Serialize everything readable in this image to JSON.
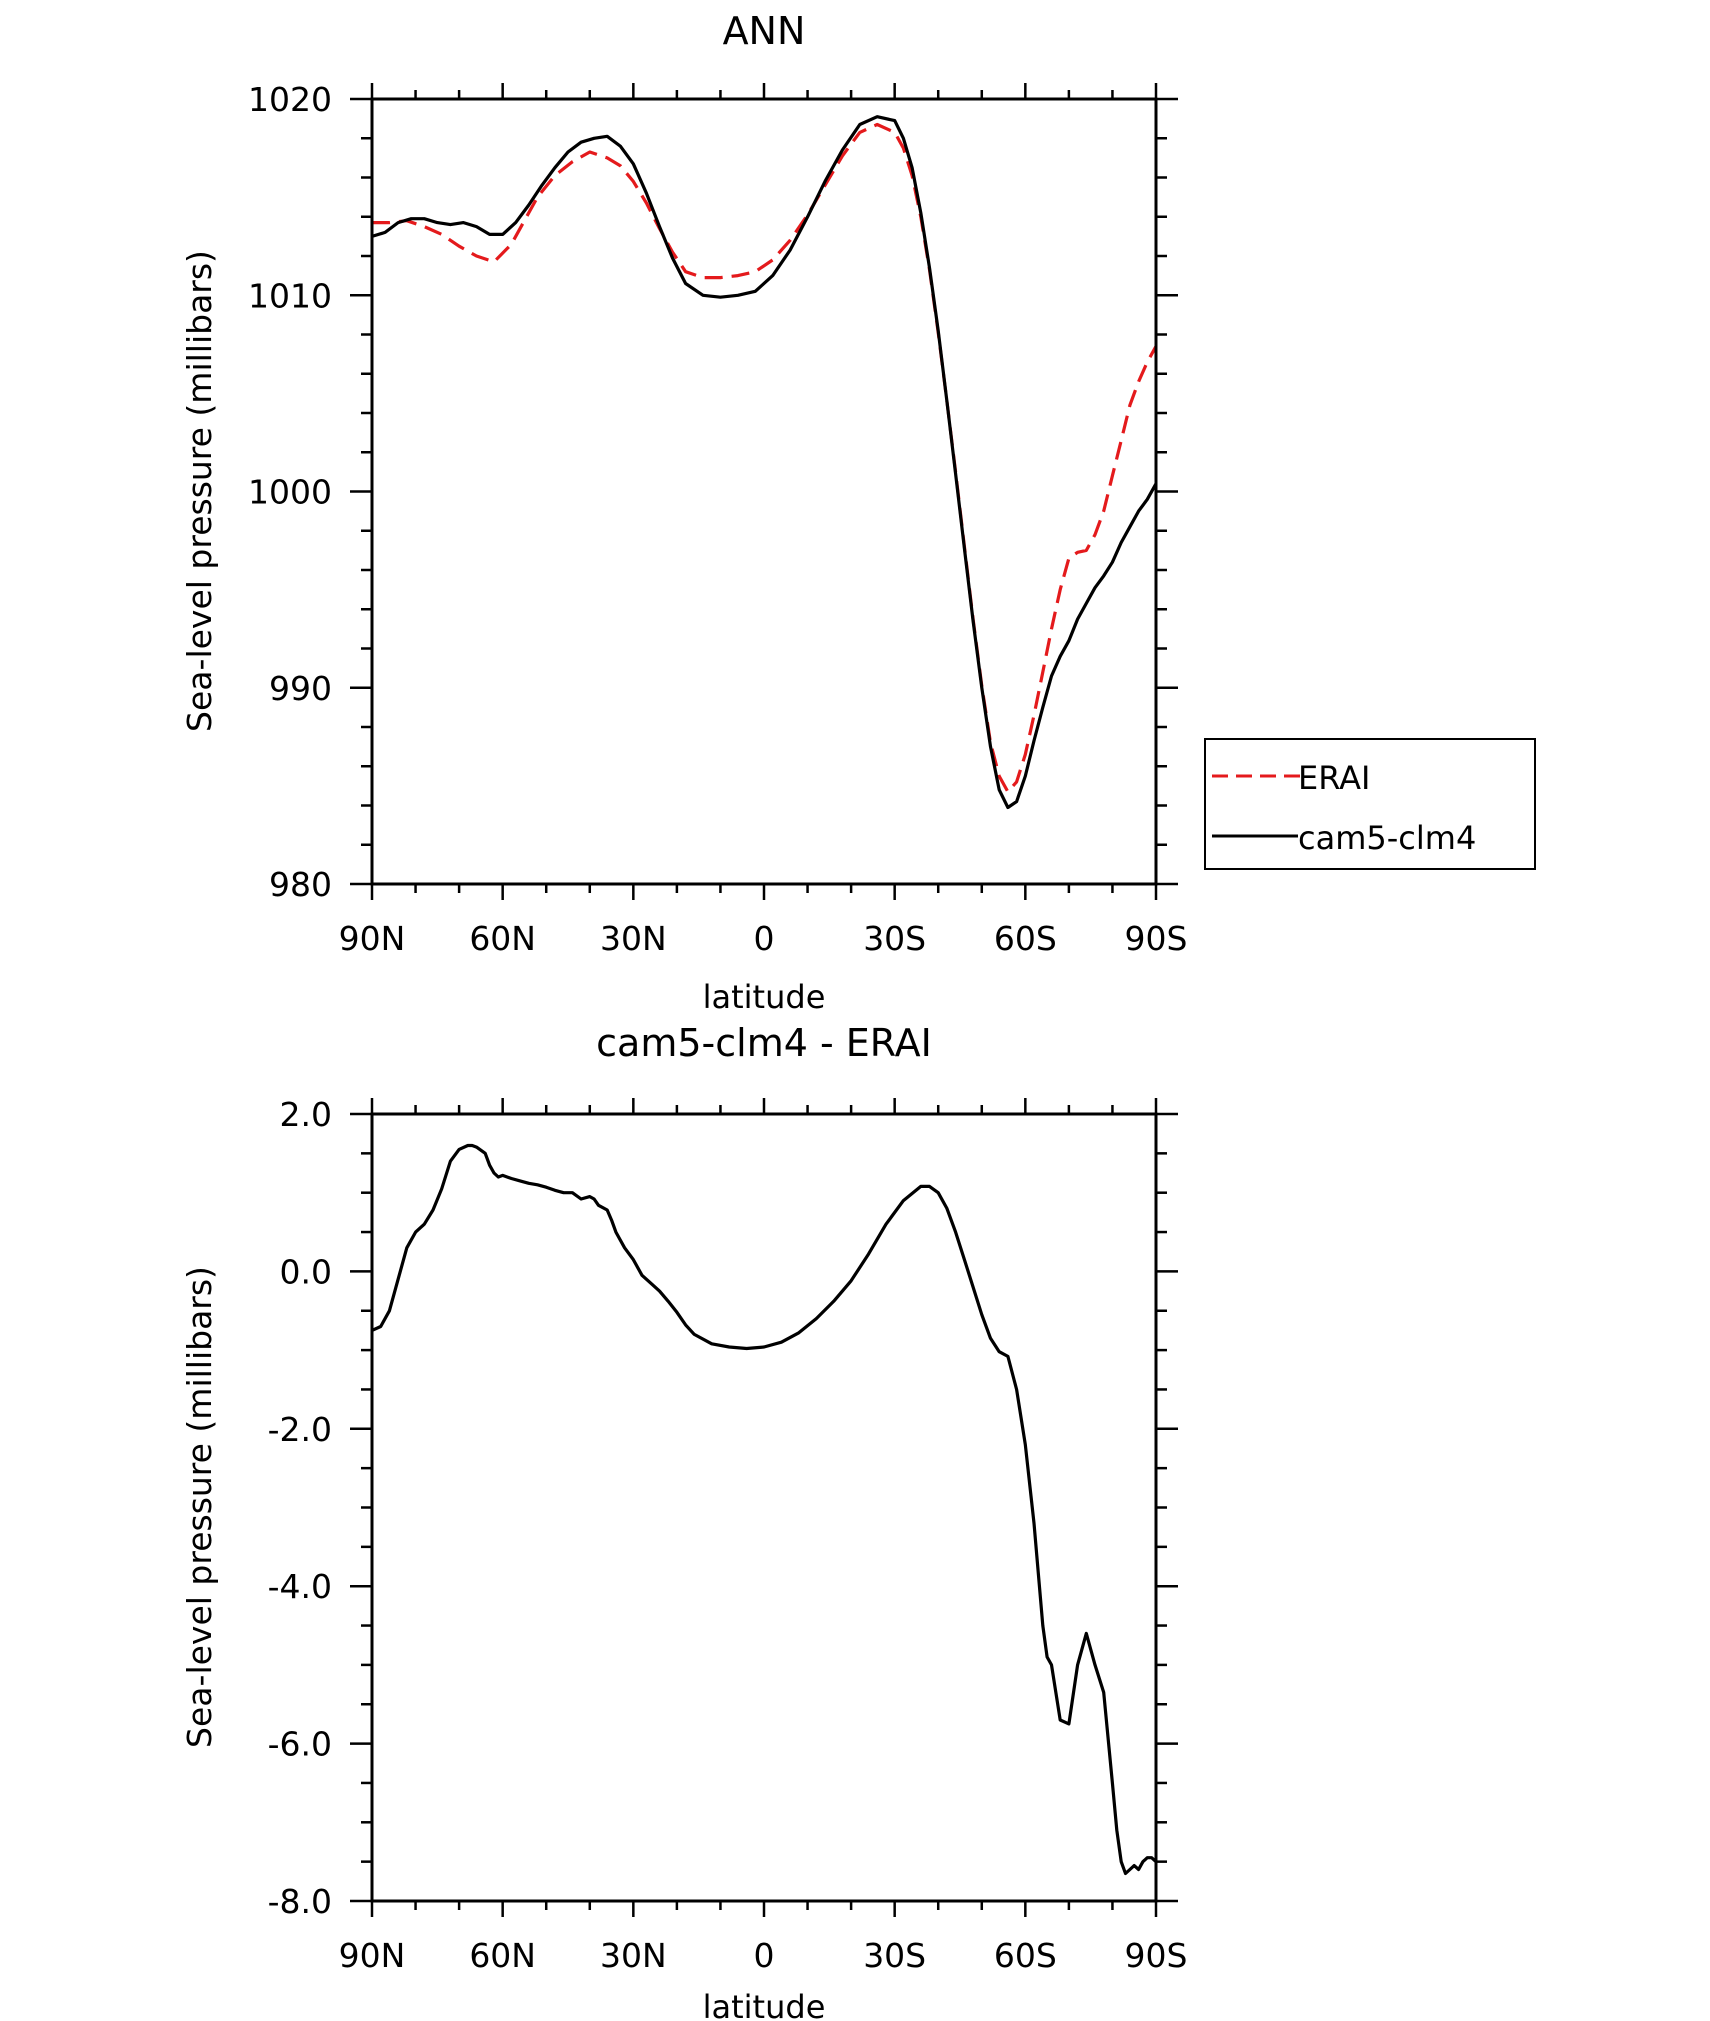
{
  "chart_data": [
    {
      "type": "line",
      "title": "ANN",
      "xlabel": "latitude",
      "ylabel": "Sea-level pressure (millibars)",
      "xlim": [
        90,
        -90
      ],
      "ylim": [
        980,
        1020
      ],
      "x_ticks": [
        {
          "value": 90,
          "label": "90N"
        },
        {
          "value": 60,
          "label": "60N"
        },
        {
          "value": 30,
          "label": "30N"
        },
        {
          "value": 0,
          "label": "0"
        },
        {
          "value": -30,
          "label": "30S"
        },
        {
          "value": -60,
          "label": "60S"
        },
        {
          "value": -90,
          "label": "90S"
        }
      ],
      "y_ticks": [
        {
          "value": 1020,
          "label": "1020"
        },
        {
          "value": 1010,
          "label": "1010"
        },
        {
          "value": 1000,
          "label": "1000"
        },
        {
          "value": 990,
          "label": "990"
        },
        {
          "value": 980,
          "label": "980"
        }
      ],
      "grid": false,
      "legend": {
        "placement": "right",
        "entries": [
          {
            "name": "ERAI",
            "color": "#e41a1c",
            "dash": "dashed"
          },
          {
            "name": "cam5-clm4",
            "color": "#000000",
            "dash": "solid"
          }
        ]
      },
      "series": [
        {
          "name": "ERAI",
          "color": "#e41a1c",
          "dash": "dashed",
          "x": [
            90,
            86,
            82,
            78,
            74,
            70,
            66,
            62,
            58,
            55,
            52,
            48,
            44,
            40,
            36,
            33,
            30,
            27,
            24,
            21,
            18,
            14,
            10,
            6,
            2,
            -2,
            -6,
            -10,
            -14,
            -18,
            -22,
            -26,
            -30,
            -32,
            -34,
            -36,
            -38,
            -40,
            -42,
            -44,
            -46,
            -48,
            -50,
            -52,
            -54,
            -56,
            -58,
            -60,
            -62,
            -64,
            -66,
            -68,
            -70,
            -72,
            -74,
            -76,
            -78,
            -80,
            -82,
            -84,
            -86,
            -88,
            -90
          ],
          "y": [
            1013.7,
            1013.7,
            1013.8,
            1013.5,
            1013.1,
            1012.5,
            1012.0,
            1011.7,
            1012.6,
            1013.8,
            1015.0,
            1016.1,
            1016.8,
            1017.3,
            1017.0,
            1016.6,
            1015.8,
            1014.7,
            1013.4,
            1012.2,
            1011.2,
            1010.9,
            1010.9,
            1011.0,
            1011.2,
            1011.8,
            1012.8,
            1014.1,
            1015.6,
            1017.1,
            1018.3,
            1018.7,
            1018.3,
            1017.5,
            1016.1,
            1014.0,
            1011.3,
            1008.1,
            1004.6,
            1001.0,
            997.2,
            993.5,
            990.1,
            987.2,
            985.5,
            984.7,
            985.2,
            986.6,
            988.6,
            990.8,
            993.0,
            995.0,
            996.6,
            996.9,
            997.0,
            997.8,
            999.0,
            1000.8,
            1002.6,
            1004.4,
            1005.6,
            1006.6,
            1007.4
          ]
        },
        {
          "name": "cam5-clm4",
          "color": "#000000",
          "dash": "solid",
          "x": [
            90,
            87,
            84,
            81,
            78,
            75,
            72,
            69,
            66,
            63,
            60,
            57,
            54,
            51,
            48,
            45,
            42,
            39,
            36,
            33,
            30,
            27,
            24,
            21,
            18,
            14,
            10,
            6,
            2,
            -2,
            -6,
            -10,
            -14,
            -18,
            -22,
            -26,
            -30,
            -32,
            -34,
            -36,
            -38,
            -40,
            -42,
            -44,
            -46,
            -48,
            -50,
            -52,
            -54,
            -56,
            -58,
            -60,
            -62,
            -64,
            -66,
            -68,
            -70,
            -72,
            -74,
            -76,
            -78,
            -80,
            -82,
            -84,
            -86,
            -88,
            -90
          ],
          "y": [
            1013.0,
            1013.2,
            1013.7,
            1013.9,
            1013.9,
            1013.7,
            1013.6,
            1013.7,
            1013.5,
            1013.1,
            1013.1,
            1013.7,
            1014.6,
            1015.6,
            1016.5,
            1017.3,
            1017.8,
            1018.0,
            1018.1,
            1017.6,
            1016.7,
            1015.2,
            1013.5,
            1011.9,
            1010.6,
            1010.0,
            1009.9,
            1010.0,
            1010.2,
            1011.0,
            1012.3,
            1014.0,
            1015.8,
            1017.4,
            1018.7,
            1019.1,
            1018.9,
            1018.0,
            1016.5,
            1014.2,
            1011.4,
            1008.2,
            1004.6,
            1000.9,
            997.1,
            993.4,
            990.0,
            987.0,
            984.8,
            983.9,
            984.2,
            985.5,
            987.3,
            989.0,
            990.6,
            991.6,
            992.4,
            993.5,
            994.3,
            995.1,
            995.7,
            996.4,
            997.4,
            998.2,
            999.0,
            999.6,
            1000.4
          ]
        }
      ]
    },
    {
      "type": "line",
      "title": "cam5-clm4 - ERAI",
      "xlabel": "latitude",
      "ylabel": "Sea-level pressure (millibars)",
      "xlim": [
        90,
        -90
      ],
      "ylim": [
        -8.0,
        2.0
      ],
      "x_ticks": [
        {
          "value": 90,
          "label": "90N"
        },
        {
          "value": 60,
          "label": "60N"
        },
        {
          "value": 30,
          "label": "30N"
        },
        {
          "value": 0,
          "label": "0"
        },
        {
          "value": -30,
          "label": "30S"
        },
        {
          "value": -60,
          "label": "60S"
        },
        {
          "value": -90,
          "label": "90S"
        }
      ],
      "y_ticks": [
        {
          "value": 2.0,
          "label": "2.0"
        },
        {
          "value": 0.0,
          "label": "0.0"
        },
        {
          "value": -2.0,
          "label": "-2.0"
        },
        {
          "value": -4.0,
          "label": "-4.0"
        },
        {
          "value": -6.0,
          "label": "-6.0"
        },
        {
          "value": -8.0,
          "label": "-8.0"
        }
      ],
      "grid": false,
      "series": [
        {
          "name": "cam5-clm4 - ERAI",
          "color": "#000000",
          "dash": "solid",
          "x": [
            90,
            88,
            86,
            84,
            82,
            80,
            78,
            76,
            74,
            72,
            70,
            68,
            67,
            66,
            64,
            63,
            62,
            61,
            60,
            58,
            56,
            54,
            52,
            50,
            48,
            46,
            44,
            42,
            40,
            39,
            38,
            36,
            35,
            34,
            32,
            30,
            28,
            26,
            24,
            22,
            20,
            18,
            16,
            12,
            8,
            4,
            0,
            -4,
            -8,
            -12,
            -16,
            -20,
            -24,
            -28,
            -32,
            -36,
            -38,
            -40,
            -42,
            -44,
            -46,
            -48,
            -50,
            -52,
            -54,
            -56,
            -58,
            -60,
            -62,
            -64,
            -65,
            -66,
            -68,
            -70,
            -72,
            -74,
            -76,
            -78,
            -80,
            -81,
            -82,
            -83,
            -84,
            -85,
            -86,
            -87,
            -88,
            -89,
            -90
          ],
          "y": [
            -0.75,
            -0.7,
            -0.5,
            -0.1,
            0.3,
            0.5,
            0.6,
            0.78,
            1.05,
            1.4,
            1.55,
            1.6,
            1.6,
            1.58,
            1.5,
            1.35,
            1.25,
            1.2,
            1.22,
            1.18,
            1.15,
            1.12,
            1.1,
            1.07,
            1.03,
            1.0,
            1.0,
            0.92,
            0.95,
            0.92,
            0.84,
            0.78,
            0.65,
            0.5,
            0.3,
            0.15,
            -0.05,
            -0.15,
            -0.25,
            -0.38,
            -0.52,
            -0.68,
            -0.8,
            -0.92,
            -0.96,
            -0.98,
            -0.96,
            -0.9,
            -0.78,
            -0.6,
            -0.38,
            -0.12,
            0.22,
            0.6,
            0.9,
            1.08,
            1.08,
            1.0,
            0.8,
            0.5,
            0.15,
            -0.2,
            -0.55,
            -0.85,
            -1.02,
            -1.08,
            -1.5,
            -2.2,
            -3.2,
            -4.5,
            -4.9,
            -5.0,
            -5.7,
            -5.75,
            -5.0,
            -4.6,
            -5.0,
            -5.35,
            -6.5,
            -7.1,
            -7.5,
            -7.65,
            -7.6,
            -7.55,
            -7.6,
            -7.5,
            -7.45,
            -7.45,
            -7.5
          ]
        }
      ]
    }
  ]
}
